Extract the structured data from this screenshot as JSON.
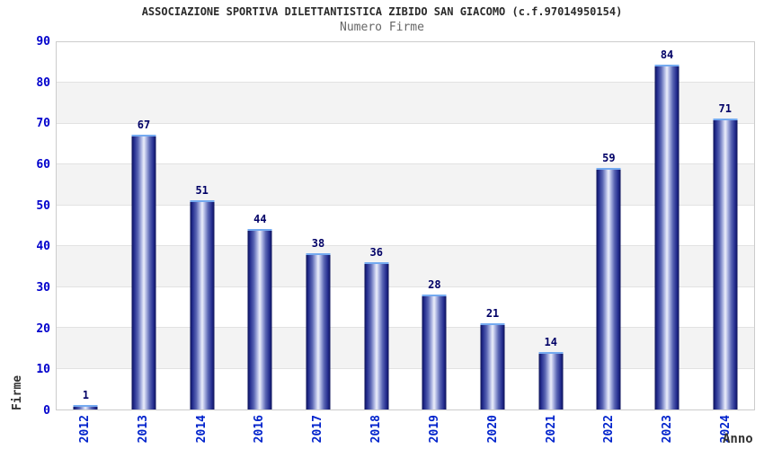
{
  "header": {
    "title": "ASSOCIAZIONE SPORTIVA DILETTANTISTICA ZIBIDO SAN GIACOMO (c.f.97014950154)",
    "subtitle": "Numero Firme"
  },
  "chart_data": {
    "type": "bar",
    "title": "ASSOCIAZIONE SPORTIVA DILETTANTISTICA ZIBIDO SAN GIACOMO (c.f.97014950154)",
    "subtitle": "Numero Firme",
    "categories": [
      "2012",
      "2013",
      "2014",
      "2016",
      "2017",
      "2018",
      "2019",
      "2020",
      "2021",
      "2022",
      "2023",
      "2024"
    ],
    "values": [
      1,
      67,
      51,
      44,
      38,
      36,
      28,
      21,
      14,
      59,
      84,
      71
    ],
    "xlabel": "Anno",
    "ylabel": "Firme",
    "ylim": [
      0,
      90
    ],
    "yticks": [
      0,
      10,
      20,
      30,
      40,
      50,
      60,
      70,
      80,
      90
    ],
    "grid": "horizontal-alternating-bands",
    "legend_position": "none",
    "value_labels": "above-bars",
    "colors": {
      "bar_edge": "#0d1257",
      "bar_mid": "#5a66b4",
      "bar_highlight": "#eceffa",
      "bar_cap": "#74aaf0",
      "axis_tick_label": "#0000cc",
      "value_label": "#000066",
      "band_gray": "#f3f3f3",
      "band_white": "#ffffff",
      "gridline": "#e2e2e2",
      "plot_border": "#cccccc",
      "title": "#2a2a2a",
      "subtitle": "#666666",
      "axis_title": "#333333"
    }
  }
}
